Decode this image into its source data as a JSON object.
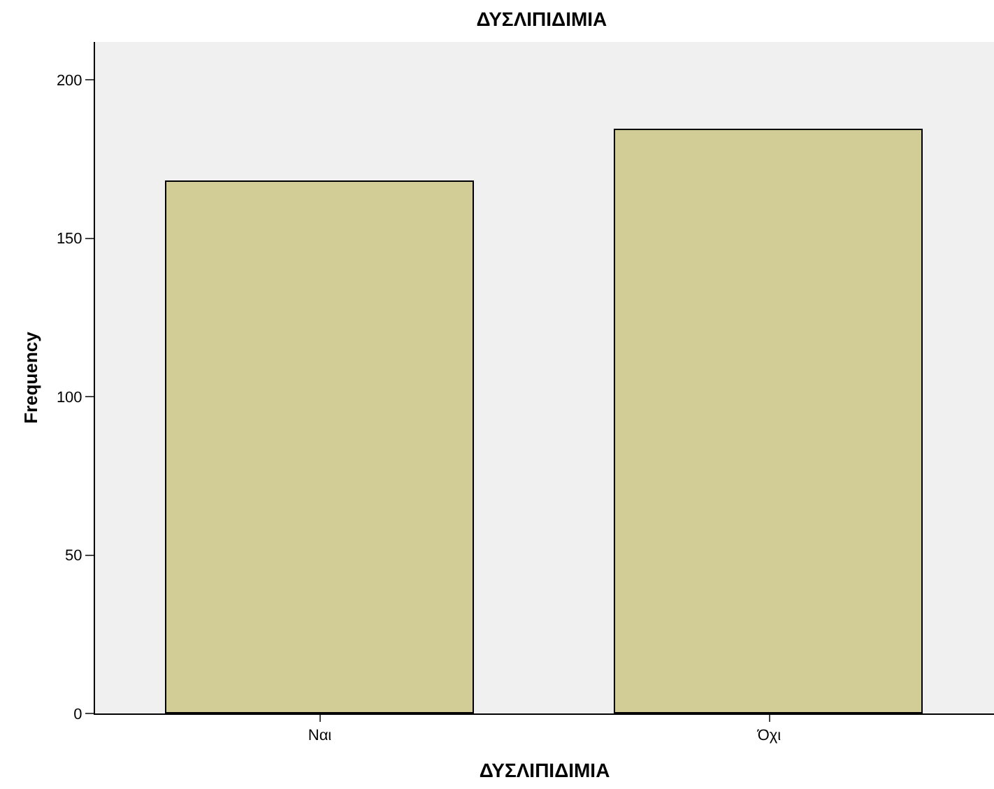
{
  "chart_data": {
    "type": "bar",
    "title": "ΔΥΣΛΙΠΙΔΙΜΙΑ",
    "xlabel": "ΔΥΣΛΙΠΙΔΙΜΙΑ",
    "ylabel": "Frequency",
    "categories": [
      "Ναι",
      "Όχι"
    ],
    "values": [
      168,
      184
    ],
    "color": "#d2cd96",
    "ylim": [
      0,
      212
    ],
    "yticks": [
      0,
      50,
      100,
      150,
      200
    ],
    "grid": false
  }
}
